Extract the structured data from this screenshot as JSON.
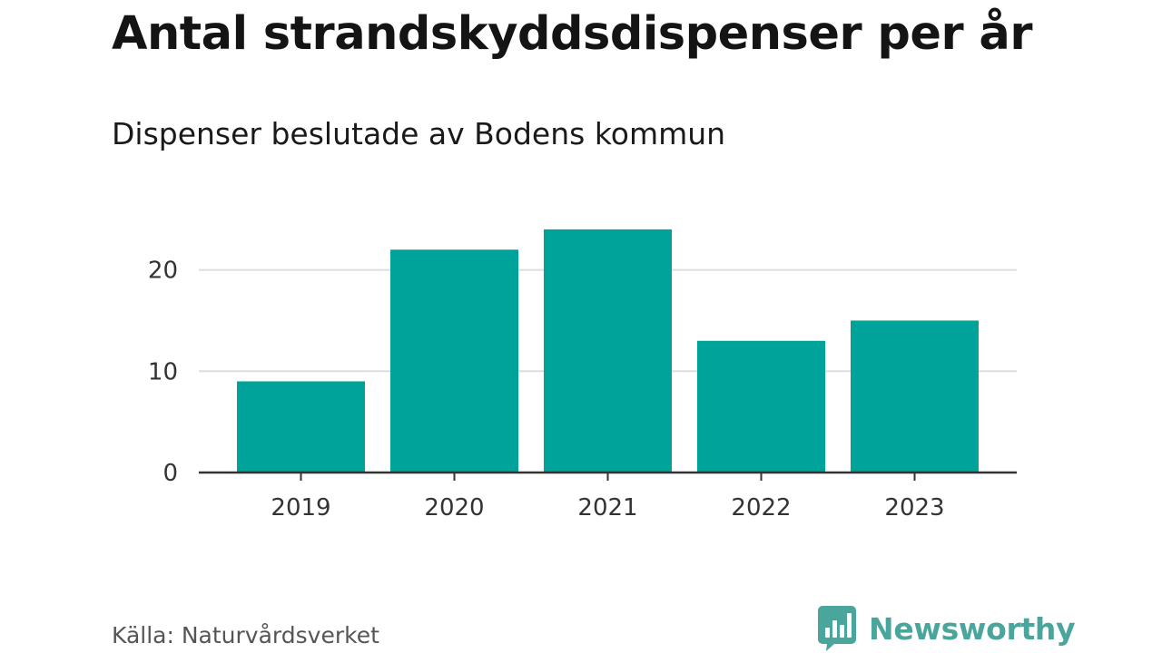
{
  "header": {
    "title": "Antal strandskyddsdispenser per år",
    "subtitle": "Dispenser beslutade av Bodens kommun"
  },
  "footer": {
    "source": "Källa: Naturvårdsverket",
    "brand": "Newsworthy"
  },
  "colors": {
    "bar": "#00a399",
    "grid": "#dddddd",
    "axis": "#333333",
    "brand": "#4aa69c"
  },
  "chart_data": {
    "type": "bar",
    "title": "Antal strandskyddsdispenser per år",
    "subtitle": "Dispenser beslutade av Bodens kommun",
    "categories": [
      "2019",
      "2020",
      "2021",
      "2022",
      "2023"
    ],
    "values": [
      9,
      22,
      24,
      13,
      15
    ],
    "yticks": [
      0,
      10,
      20
    ],
    "ylim": [
      0,
      24
    ],
    "xlabel": "",
    "ylabel": "",
    "grid": true,
    "legend": "none"
  }
}
